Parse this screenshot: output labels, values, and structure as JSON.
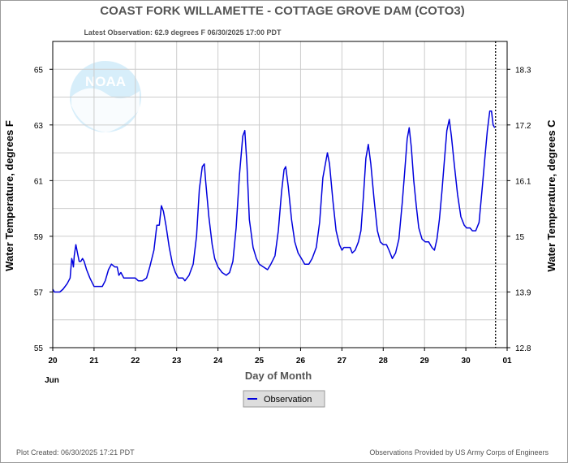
{
  "chart_data": {
    "type": "line",
    "title": "COAST FORK WILLAMETTE - COTTAGE GROVE DAM  (COTO3)",
    "subtitle": "Latest Observation: 62.9 degrees F 06/30/2025 17:00 PDT",
    "ylabel": "Water Temperature, degrees F",
    "ylabel_right": "Water Temperature, degrees C",
    "xlabel": "Day of Month",
    "x_month_label": "Jun",
    "ylim": [
      55,
      66
    ],
    "xlim": [
      20,
      31
    ],
    "y_ticks": [
      "55",
      "57",
      "59",
      "61",
      "63",
      "65"
    ],
    "y_ticks_right": [
      "12.8",
      "13.9",
      "15",
      "16.1",
      "17.2",
      "18.3"
    ],
    "x_ticks": [
      "20",
      "21",
      "22",
      "23",
      "24",
      "25",
      "26",
      "27",
      "28",
      "29",
      "30",
      "01"
    ],
    "grid": true,
    "legend_position": "bottom-center",
    "latest_marker_day": 30.72,
    "series": [
      {
        "name": "Observation",
        "color": "#0000dd",
        "points": [
          [
            20.0,
            57.1
          ],
          [
            20.04,
            57.0
          ],
          [
            20.17,
            57.0
          ],
          [
            20.25,
            57.1
          ],
          [
            20.35,
            57.3
          ],
          [
            20.42,
            57.5
          ],
          [
            20.46,
            58.2
          ],
          [
            20.48,
            58.1
          ],
          [
            20.5,
            57.9
          ],
          [
            20.52,
            58.3
          ],
          [
            20.56,
            58.7
          ],
          [
            20.6,
            58.4
          ],
          [
            20.64,
            58.1
          ],
          [
            20.68,
            58.1
          ],
          [
            20.72,
            58.2
          ],
          [
            20.76,
            58.1
          ],
          [
            20.82,
            57.8
          ],
          [
            20.9,
            57.5
          ],
          [
            21.0,
            57.2
          ],
          [
            21.1,
            57.2
          ],
          [
            21.2,
            57.2
          ],
          [
            21.27,
            57.4
          ],
          [
            21.35,
            57.8
          ],
          [
            21.42,
            58.0
          ],
          [
            21.5,
            57.9
          ],
          [
            21.56,
            57.9
          ],
          [
            21.6,
            57.6
          ],
          [
            21.65,
            57.7
          ],
          [
            21.72,
            57.5
          ],
          [
            21.8,
            57.5
          ],
          [
            22.0,
            57.5
          ],
          [
            22.07,
            57.4
          ],
          [
            22.17,
            57.4
          ],
          [
            22.27,
            57.5
          ],
          [
            22.35,
            57.9
          ],
          [
            22.45,
            58.5
          ],
          [
            22.52,
            59.4
          ],
          [
            22.58,
            59.4
          ],
          [
            22.63,
            60.1
          ],
          [
            22.68,
            59.9
          ],
          [
            22.74,
            59.4
          ],
          [
            22.82,
            58.6
          ],
          [
            22.9,
            58.0
          ],
          [
            22.97,
            57.7
          ],
          [
            23.04,
            57.5
          ],
          [
            23.15,
            57.5
          ],
          [
            23.2,
            57.4
          ],
          [
            23.3,
            57.6
          ],
          [
            23.4,
            58.0
          ],
          [
            23.48,
            59.0
          ],
          [
            23.55,
            60.7
          ],
          [
            23.62,
            61.5
          ],
          [
            23.67,
            61.6
          ],
          [
            23.7,
            61.0
          ],
          [
            23.78,
            59.7
          ],
          [
            23.86,
            58.7
          ],
          [
            23.92,
            58.2
          ],
          [
            24.0,
            57.9
          ],
          [
            24.1,
            57.7
          ],
          [
            24.2,
            57.6
          ],
          [
            24.28,
            57.7
          ],
          [
            24.36,
            58.1
          ],
          [
            24.44,
            59.3
          ],
          [
            24.52,
            61.2
          ],
          [
            24.6,
            62.6
          ],
          [
            24.65,
            62.8
          ],
          [
            24.7,
            61.6
          ],
          [
            24.76,
            59.6
          ],
          [
            24.85,
            58.6
          ],
          [
            24.93,
            58.2
          ],
          [
            25.0,
            58.0
          ],
          [
            25.1,
            57.9
          ],
          [
            25.2,
            57.8
          ],
          [
            25.28,
            58.0
          ],
          [
            25.38,
            58.3
          ],
          [
            25.46,
            59.2
          ],
          [
            25.54,
            60.6
          ],
          [
            25.6,
            61.4
          ],
          [
            25.64,
            61.5
          ],
          [
            25.7,
            60.8
          ],
          [
            25.78,
            59.6
          ],
          [
            25.86,
            58.8
          ],
          [
            25.94,
            58.4
          ],
          [
            26.02,
            58.2
          ],
          [
            26.1,
            58.0
          ],
          [
            26.2,
            58.0
          ],
          [
            26.28,
            58.2
          ],
          [
            26.38,
            58.6
          ],
          [
            26.46,
            59.5
          ],
          [
            26.54,
            61.1
          ],
          [
            26.6,
            61.6
          ],
          [
            26.65,
            62.0
          ],
          [
            26.7,
            61.6
          ],
          [
            26.78,
            60.3
          ],
          [
            26.86,
            59.2
          ],
          [
            26.94,
            58.7
          ],
          [
            27.0,
            58.5
          ],
          [
            27.05,
            58.6
          ],
          [
            27.12,
            58.6
          ],
          [
            27.2,
            58.6
          ],
          [
            27.25,
            58.4
          ],
          [
            27.32,
            58.5
          ],
          [
            27.4,
            58.8
          ],
          [
            27.46,
            59.2
          ],
          [
            27.52,
            60.4
          ],
          [
            27.58,
            61.8
          ],
          [
            27.64,
            62.3
          ],
          [
            27.7,
            61.6
          ],
          [
            27.78,
            60.3
          ],
          [
            27.86,
            59.2
          ],
          [
            27.93,
            58.8
          ],
          [
            28.0,
            58.7
          ],
          [
            28.08,
            58.7
          ],
          [
            28.14,
            58.5
          ],
          [
            28.22,
            58.2
          ],
          [
            28.3,
            58.4
          ],
          [
            28.38,
            58.9
          ],
          [
            28.46,
            60.2
          ],
          [
            28.52,
            61.3
          ],
          [
            28.58,
            62.5
          ],
          [
            28.63,
            62.9
          ],
          [
            28.68,
            62.2
          ],
          [
            28.74,
            61.0
          ],
          [
            28.8,
            60.1
          ],
          [
            28.86,
            59.3
          ],
          [
            28.94,
            58.9
          ],
          [
            29.02,
            58.8
          ],
          [
            29.1,
            58.8
          ],
          [
            29.18,
            58.6
          ],
          [
            29.24,
            58.5
          ],
          [
            29.3,
            58.9
          ],
          [
            29.36,
            59.6
          ],
          [
            29.42,
            60.6
          ],
          [
            29.48,
            61.7
          ],
          [
            29.54,
            62.8
          ],
          [
            29.6,
            63.2
          ],
          [
            29.65,
            62.6
          ],
          [
            29.72,
            61.6
          ],
          [
            29.8,
            60.5
          ],
          [
            29.88,
            59.7
          ],
          [
            29.96,
            59.4
          ],
          [
            30.02,
            59.3
          ],
          [
            30.1,
            59.3
          ],
          [
            30.16,
            59.2
          ],
          [
            30.24,
            59.2
          ],
          [
            30.32,
            59.5
          ],
          [
            30.4,
            60.8
          ],
          [
            30.46,
            61.8
          ],
          [
            30.52,
            62.8
          ],
          [
            30.58,
            63.5
          ],
          [
            30.62,
            63.5
          ],
          [
            30.66,
            63.0
          ],
          [
            30.7,
            62.9
          ]
        ]
      }
    ]
  },
  "footer": {
    "left": "Plot Created: 06/30/2025 17:21 PDT",
    "right": "Observations Provided by US Army Corps of Engineers"
  },
  "logo": {
    "text": "NOAA"
  },
  "colors": {
    "series": "#0000dd",
    "grid": "#cccccc",
    "logo": "#4fb3ea"
  }
}
